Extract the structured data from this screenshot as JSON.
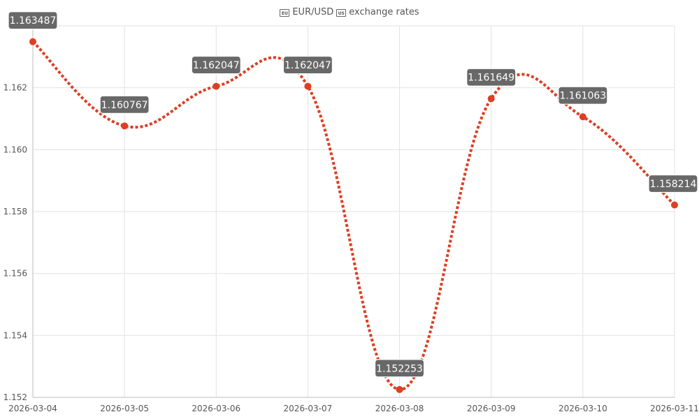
{
  "title": {
    "left_icon": "eu-flag-icon",
    "left_icon_text": "EU",
    "base": "EUR/USD",
    "right_icon": "us-flag-icon",
    "right_icon_text": "US",
    "suffix": "exchange rates"
  },
  "colors": {
    "series": "#dd3f24",
    "label_bg": "#686868",
    "grid": "#e2e2e2"
  },
  "chart_data": {
    "type": "line",
    "x": [
      "2026-03-04",
      "2026-03-05",
      "2026-03-06",
      "2026-03-07",
      "2026-03-08",
      "2026-03-09",
      "2026-03-10",
      "2026-03-11"
    ],
    "series": [
      {
        "values": [
          1.163487,
          1.160767,
          1.162047,
          1.162047,
          1.152253,
          1.161649,
          1.161063,
          1.158214
        ],
        "labels": [
          "1.163487",
          "1.160767",
          "1.162047",
          "1.162047",
          "1.152253",
          "1.161649",
          "1.161063",
          "1.158214"
        ]
      }
    ],
    "ylim": [
      1.152,
      1.164
    ],
    "yticks": [
      1.152,
      1.154,
      1.156,
      1.158,
      1.16,
      1.162
    ],
    "ytick_labels": [
      "1.152",
      "1.154",
      "1.156",
      "1.158",
      "1.160",
      "1.162"
    ],
    "grid": true,
    "line_style": "dotted",
    "curve": "smooth"
  }
}
